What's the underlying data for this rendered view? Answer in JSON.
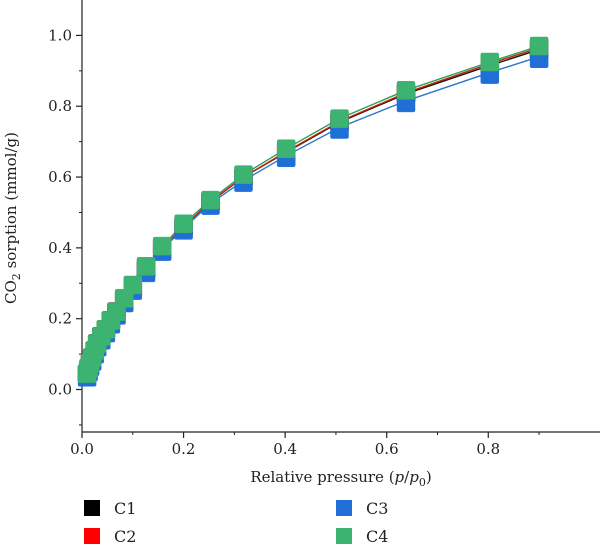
{
  "chart_data": {
    "type": "scatter",
    "xlabel": "Relative pressure (p/p0)",
    "ylabel": "CO2 sorption (mmol/g)",
    "xlim": [
      0,
      1.02
    ],
    "ylim": [
      -0.12,
      1.1
    ],
    "xticks": [
      "0.0",
      "0.2",
      "0.4",
      "0.6",
      "0.8"
    ],
    "yticks": [
      "0.0",
      "0.2",
      "0.4",
      "0.6",
      "0.8",
      "1.0"
    ],
    "x": [
      0.01,
      0.013,
      0.016,
      0.02,
      0.025,
      0.03,
      0.038,
      0.047,
      0.057,
      0.068,
      0.083,
      0.1,
      0.126,
      0.158,
      0.2,
      0.253,
      0.318,
      0.402,
      0.507,
      0.638,
      0.803,
      0.9
    ],
    "series": [
      {
        "name": "C1",
        "color": "#000000",
        "fit_color": "#111111",
        "values": [
          0.045,
          0.06,
          0.075,
          0.09,
          0.11,
          0.13,
          0.15,
          0.17,
          0.195,
          0.22,
          0.255,
          0.29,
          0.34,
          0.4,
          0.46,
          0.53,
          0.6,
          0.67,
          0.755,
          0.835,
          0.915,
          0.96
        ]
      },
      {
        "name": "C2",
        "color": "#ff0000",
        "fit_color": "#cc2200",
        "values": [
          0.045,
          0.06,
          0.075,
          0.09,
          0.11,
          0.13,
          0.15,
          0.17,
          0.195,
          0.22,
          0.255,
          0.29,
          0.34,
          0.4,
          0.46,
          0.53,
          0.6,
          0.672,
          0.757,
          0.838,
          0.92,
          0.965
        ]
      },
      {
        "name": "C3",
        "color": "#1f6fd6",
        "fit_color": "#2a78c8",
        "values": [
          0.04,
          0.055,
          0.07,
          0.085,
          0.105,
          0.125,
          0.145,
          0.165,
          0.19,
          0.215,
          0.25,
          0.285,
          0.335,
          0.395,
          0.455,
          0.525,
          0.59,
          0.66,
          0.74,
          0.815,
          0.895,
          0.94
        ]
      },
      {
        "name": "C4",
        "color": "#3cb371",
        "fit_color": "#2e9e5e",
        "values": [
          0.045,
          0.06,
          0.075,
          0.09,
          0.11,
          0.13,
          0.15,
          0.17,
          0.195,
          0.22,
          0.258,
          0.295,
          0.348,
          0.405,
          0.468,
          0.535,
          0.607,
          0.68,
          0.765,
          0.845,
          0.925,
          0.97
        ]
      }
    ],
    "legend": {
      "placement": "bottom",
      "entries": [
        "C1",
        "C2",
        "C3",
        "C4"
      ]
    },
    "grid": false
  }
}
